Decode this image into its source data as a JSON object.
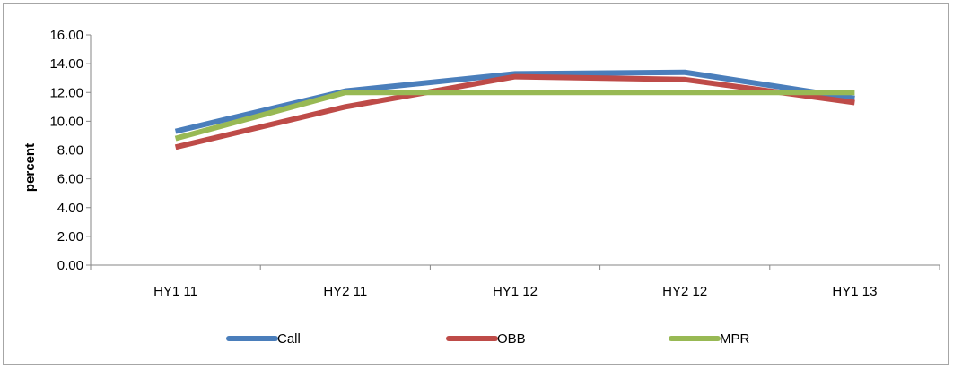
{
  "chart_data": {
    "type": "line",
    "categories": [
      "HY1 11",
      "HY2 11",
      "HY1 12",
      "HY2 12",
      "HY1 13"
    ],
    "series": [
      {
        "name": "Call",
        "values": [
          9.3,
          12.1,
          13.3,
          13.4,
          11.6
        ],
        "color": "#4a7ebb"
      },
      {
        "name": "OBB",
        "values": [
          8.2,
          11.0,
          13.1,
          12.9,
          11.3
        ],
        "color": "#be4b48"
      },
      {
        "name": "MPR",
        "values": [
          8.8,
          12.0,
          12.0,
          12.0,
          12.0
        ],
        "color": "#98b954"
      }
    ],
    "ylabel": "percent",
    "xlabel": "",
    "title": "",
    "ylim": [
      0,
      16
    ],
    "yticks": [
      "0.00",
      "2.00",
      "4.00",
      "6.00",
      "8.00",
      "10.00",
      "12.00",
      "14.00",
      "16.00"
    ],
    "grid": false,
    "legend_position": "bottom"
  }
}
